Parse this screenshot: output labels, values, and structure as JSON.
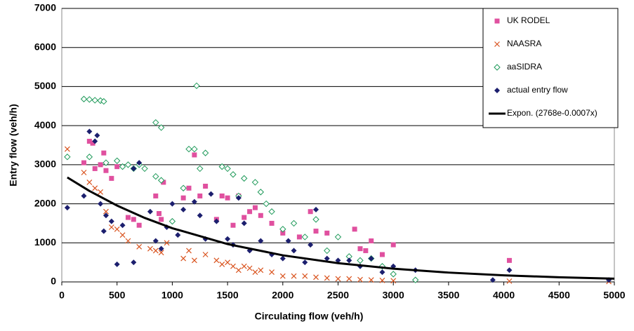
{
  "chart_data": {
    "type": "scatter",
    "xlabel": "Circulating flow  (veh/h)",
    "ylabel": "Entry flow (veh/h)",
    "xlim": [
      0,
      5000
    ],
    "xticks": [
      0,
      500,
      1000,
      1500,
      2000,
      2500,
      3000,
      3500,
      4000,
      4500,
      5000
    ],
    "ylim": [
      0,
      7000
    ],
    "yticks": [
      0,
      1000,
      2000,
      3000,
      4000,
      5000,
      6000,
      7000
    ],
    "grid": true,
    "legend": "upper right",
    "series": [
      {
        "name": "UK RODEL",
        "color": "#e0509f",
        "marker": "square",
        "x": [
          200,
          250,
          280,
          300,
          350,
          380,
          400,
          450,
          500,
          600,
          650,
          700,
          850,
          880,
          900,
          920,
          1100,
          1150,
          1200,
          1250,
          1300,
          1400,
          1450,
          1500,
          1550,
          1600,
          1650,
          1700,
          1750,
          1800,
          1900,
          2000,
          2150,
          2250,
          2300,
          2400,
          2650,
          2700,
          2750,
          2800,
          2900,
          3000,
          4050
        ],
        "values": [
          3050,
          3600,
          3550,
          2900,
          3000,
          3300,
          2850,
          2650,
          2950,
          1650,
          1600,
          1450,
          2200,
          1750,
          1600,
          2550,
          2150,
          2400,
          3250,
          2200,
          2450,
          1600,
          2200,
          2150,
          1450,
          2200,
          1650,
          1800,
          1900,
          1700,
          1500,
          1250,
          1150,
          1800,
          1300,
          1250,
          1350,
          850,
          800,
          1050,
          700,
          950,
          550
        ]
      },
      {
        "name": "NAASRA",
        "color": "#d9531e",
        "marker": "cross",
        "x": [
          50,
          200,
          250,
          300,
          350,
          400,
          450,
          500,
          550,
          600,
          700,
          800,
          850,
          900,
          950,
          1100,
          1150,
          1200,
          1300,
          1400,
          1450,
          1500,
          1550,
          1600,
          1650,
          1700,
          1750,
          1800,
          1900,
          2000,
          2100,
          2200,
          2300,
          2400,
          2500,
          2600,
          2700,
          2800,
          2900,
          3000,
          4050,
          4950
        ],
        "values": [
          3400,
          2800,
          2550,
          2400,
          2300,
          1800,
          1400,
          1350,
          1200,
          1050,
          900,
          850,
          800,
          750,
          1000,
          600,
          800,
          550,
          700,
          550,
          450,
          500,
          400,
          300,
          400,
          350,
          250,
          300,
          250,
          150,
          150,
          150,
          120,
          100,
          80,
          80,
          60,
          50,
          40,
          30,
          20,
          10
        ]
      },
      {
        "name": "aaSIDRA",
        "color": "#1f9a5a",
        "marker": "diamond-open",
        "x": [
          50,
          200,
          250,
          300,
          350,
          380,
          250,
          400,
          500,
          550,
          600,
          650,
          700,
          750,
          850,
          900,
          850,
          900,
          1000,
          1100,
          1150,
          1200,
          1220,
          1300,
          1250,
          1450,
          1500,
          1550,
          1600,
          1650,
          1750,
          1800,
          1850,
          1900,
          2000,
          2100,
          2200,
          2300,
          2400,
          2500,
          2600,
          2700,
          2800,
          2900,
          3000,
          3200
        ],
        "values": [
          3200,
          4680,
          4670,
          4650,
          4640,
          4620,
          3200,
          3050,
          3100,
          2950,
          3000,
          2900,
          3000,
          2900,
          4080,
          3950,
          2700,
          2600,
          1550,
          2400,
          3400,
          3400,
          5020,
          3300,
          2900,
          2950,
          2900,
          2750,
          2200,
          2650,
          2550,
          2300,
          2000,
          1800,
          1350,
          1500,
          1150,
          1600,
          800,
          1150,
          650,
          550,
          600,
          400,
          200,
          50
        ]
      },
      {
        "name": "actual entry flow",
        "color": "#1c1f6e",
        "marker": "diamond",
        "x": [
          50,
          200,
          250,
          300,
          320,
          350,
          380,
          400,
          450,
          500,
          550,
          650,
          700,
          650,
          800,
          850,
          900,
          950,
          1000,
          1050,
          1100,
          1200,
          1250,
          1300,
          1350,
          1400,
          1500,
          1550,
          1600,
          1650,
          1700,
          1800,
          1900,
          2000,
          2050,
          2100,
          2200,
          2250,
          2300,
          2400,
          2500,
          2600,
          2700,
          2800,
          2900,
          3000,
          3200,
          3900,
          4050,
          4950
        ],
        "values": [
          1900,
          2200,
          3850,
          3600,
          3750,
          2000,
          1300,
          1700,
          1550,
          450,
          1450,
          2900,
          3050,
          500,
          1800,
          1050,
          850,
          1400,
          2000,
          1200,
          1850,
          2050,
          1700,
          1100,
          2250,
          1550,
          1100,
          950,
          2150,
          1500,
          800,
          1050,
          700,
          600,
          1050,
          800,
          500,
          950,
          1850,
          600,
          550,
          550,
          400,
          600,
          250,
          400,
          300,
          50,
          300,
          50
        ]
      },
      {
        "name": "Expon. (2768e-0.0007x)",
        "color": "#000000",
        "marker": "line",
        "x": [
          50,
          250,
          500,
          750,
          1000,
          1500,
          2000,
          2500,
          3000,
          3500,
          4000,
          4500,
          5000
        ],
        "values": [
          2674,
          2328,
          1954,
          1639,
          1375,
          968,
          681,
          481,
          339,
          239,
          168,
          119,
          84
        ]
      }
    ]
  }
}
